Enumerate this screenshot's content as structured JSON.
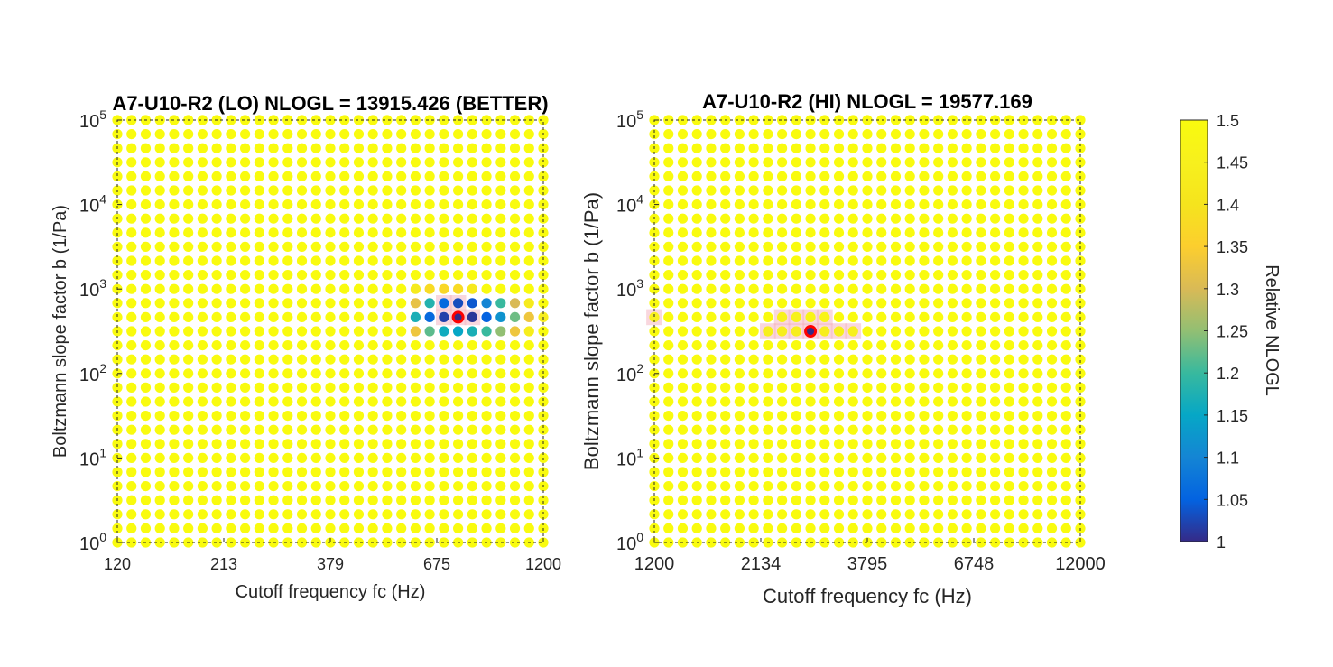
{
  "figure": {
    "colorbar": {
      "label": "Relative NLOGL",
      "min": 1,
      "max": 1.5,
      "ticks": [
        "1",
        "1.05",
        "1.1",
        "1.15",
        "1.2",
        "1.25",
        "1.3",
        "1.35",
        "1.4",
        "1.45",
        "1.5"
      ],
      "colormap": "parula"
    }
  },
  "chart_data": [
    {
      "type": "scatter",
      "title": "A7-U10-R2 (LO) NLOGL = 13915.426 (BETTER)",
      "xlabel": "Cutoff frequency fc (Hz)",
      "ylabel": "Boltzmann slope factor b (1/Pa)",
      "x_scale": "log",
      "y_scale": "log",
      "xlim": [
        120,
        1200
      ],
      "ylim": [
        1,
        100000
      ],
      "x_ticks": [
        "120",
        "213",
        "379",
        "675",
        "1200"
      ],
      "y_ticks": [
        {
          "base": "10",
          "exp": "0"
        },
        {
          "base": "10",
          "exp": "1"
        },
        {
          "base": "10",
          "exp": "2"
        },
        {
          "base": "10",
          "exp": "3"
        },
        {
          "base": "10",
          "exp": "4"
        },
        {
          "base": "10",
          "exp": "5"
        }
      ],
      "grid": "31 x 31 log-spaced points, relative NLOGL clipped at 1.5",
      "default_value": 1.5,
      "best_point": {
        "x_index": 24,
        "y_index": 16,
        "value": 1.0
      },
      "colored_points": [
        {
          "i": 21,
          "j": 18,
          "v": 1.43
        },
        {
          "i": 22,
          "j": 18,
          "v": 1.38
        },
        {
          "i": 23,
          "j": 18,
          "v": 1.37
        },
        {
          "i": 24,
          "j": 18,
          "v": 1.38
        },
        {
          "i": 25,
          "j": 18,
          "v": 1.42
        },
        {
          "i": 21,
          "j": 17,
          "v": 1.32
        },
        {
          "i": 22,
          "j": 17,
          "v": 1.18
        },
        {
          "i": 23,
          "j": 17,
          "v": 1.06
        },
        {
          "i": 24,
          "j": 17,
          "v": 1.03
        },
        {
          "i": 25,
          "j": 17,
          "v": 1.04
        },
        {
          "i": 26,
          "j": 17,
          "v": 1.1
        },
        {
          "i": 27,
          "j": 17,
          "v": 1.2
        },
        {
          "i": 28,
          "j": 17,
          "v": 1.3
        },
        {
          "i": 29,
          "j": 17,
          "v": 1.43
        },
        {
          "i": 21,
          "j": 16,
          "v": 1.17
        },
        {
          "i": 22,
          "j": 16,
          "v": 1.06
        },
        {
          "i": 23,
          "j": 16,
          "v": 1.02
        },
        {
          "i": 24,
          "j": 16,
          "v": 1.0
        },
        {
          "i": 25,
          "j": 16,
          "v": 1.01
        },
        {
          "i": 26,
          "j": 16,
          "v": 1.05
        },
        {
          "i": 27,
          "j": 16,
          "v": 1.12
        },
        {
          "i": 28,
          "j": 16,
          "v": 1.23
        },
        {
          "i": 29,
          "j": 16,
          "v": 1.33
        },
        {
          "i": 30,
          "j": 16,
          "v": 1.44
        },
        {
          "i": 21,
          "j": 15,
          "v": 1.33
        },
        {
          "i": 22,
          "j": 15,
          "v": 1.22
        },
        {
          "i": 23,
          "j": 15,
          "v": 1.16
        },
        {
          "i": 24,
          "j": 15,
          "v": 1.15
        },
        {
          "i": 25,
          "j": 15,
          "v": 1.17
        },
        {
          "i": 26,
          "j": 15,
          "v": 1.2
        },
        {
          "i": 27,
          "j": 15,
          "v": 1.25
        },
        {
          "i": 28,
          "j": 15,
          "v": 1.33
        },
        {
          "i": 29,
          "j": 15,
          "v": 1.44
        }
      ],
      "highlight_cells": [
        {
          "i": 23,
          "j": 17
        },
        {
          "i": 24,
          "j": 17
        },
        {
          "i": 23,
          "j": 16
        },
        {
          "i": 24,
          "j": 16
        },
        {
          "i": 25,
          "j": 16
        }
      ]
    },
    {
      "type": "scatter",
      "title": "A7-U10-R2 (HI) NLOGL = 19577.169",
      "xlabel": "Cutoff frequency fc (Hz)",
      "ylabel": "Boltzmann slope factor b (1/Pa)",
      "x_scale": "log",
      "y_scale": "log",
      "xlim": [
        1200,
        12000
      ],
      "ylim": [
        1,
        100000
      ],
      "x_ticks": [
        "1200",
        "2134",
        "3795",
        "6748",
        "12000"
      ],
      "y_ticks": [
        {
          "base": "10",
          "exp": "0"
        },
        {
          "base": "10",
          "exp": "1"
        },
        {
          "base": "10",
          "exp": "2"
        },
        {
          "base": "10",
          "exp": "3"
        },
        {
          "base": "10",
          "exp": "4"
        },
        {
          "base": "10",
          "exp": "5"
        }
      ],
      "grid": "31 x 31 log-spaced points, relative NLOGL clipped at 1.5",
      "default_value": 1.5,
      "best_point": {
        "x_index": 11,
        "y_index": 15,
        "value": 1.0
      },
      "colored_points": [
        {
          "i": 0,
          "j": 16,
          "v": 1.45
        },
        {
          "i": 9,
          "j": 16,
          "v": 1.46
        },
        {
          "i": 10,
          "j": 16,
          "v": 1.46
        },
        {
          "i": 11,
          "j": 16,
          "v": 1.47
        },
        {
          "i": 12,
          "j": 16,
          "v": 1.47
        },
        {
          "i": 8,
          "j": 15,
          "v": 1.45
        },
        {
          "i": 9,
          "j": 15,
          "v": 1.44
        },
        {
          "i": 10,
          "j": 15,
          "v": 1.44
        },
        {
          "i": 12,
          "j": 15,
          "v": 1.44
        },
        {
          "i": 13,
          "j": 15,
          "v": 1.45
        },
        {
          "i": 14,
          "j": 15,
          "v": 1.45
        }
      ],
      "highlight_cells": [
        {
          "i": 0,
          "j": 16
        },
        {
          "i": 9,
          "j": 16
        },
        {
          "i": 10,
          "j": 16
        },
        {
          "i": 11,
          "j": 16
        },
        {
          "i": 12,
          "j": 16
        },
        {
          "i": 8,
          "j": 15
        },
        {
          "i": 9,
          "j": 15
        },
        {
          "i": 10,
          "j": 15
        },
        {
          "i": 11,
          "j": 15
        },
        {
          "i": 12,
          "j": 15
        },
        {
          "i": 13,
          "j": 15
        },
        {
          "i": 14,
          "j": 15
        }
      ]
    }
  ]
}
